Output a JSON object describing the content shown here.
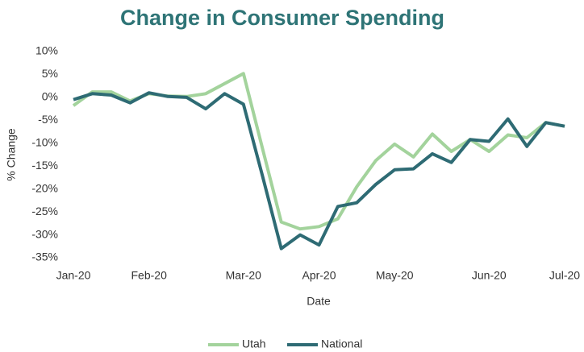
{
  "chart_data": {
    "type": "line",
    "title": "Change in Consumer Spending",
    "x_label": "Date",
    "y_label": "% Change",
    "categories": [
      "Jan-20",
      null,
      null,
      null,
      "Feb-20",
      null,
      null,
      null,
      null,
      "Mar-20",
      null,
      null,
      null,
      "Apr-20",
      null,
      null,
      null,
      "May-20",
      null,
      null,
      null,
      null,
      "Jun-20",
      null,
      null,
      null,
      "Jul-20"
    ],
    "series": [
      {
        "name": "Utah",
        "color": "#a3d39c",
        "values": [
          -1.8,
          1.2,
          1.2,
          -0.8,
          0.8,
          0.3,
          0.2,
          0.8,
          3,
          5.2,
          -11,
          -27.2,
          -28.7,
          -28.2,
          -26.5,
          -19.5,
          -13.8,
          -10.2,
          -13,
          -8,
          -11.8,
          -9.2,
          -11.8,
          -8.2,
          -8.8,
          -5.5,
          -6.3
        ]
      },
      {
        "name": "National",
        "color": "#2e6b74",
        "values": [
          -0.5,
          0.8,
          0.5,
          -1.2,
          1,
          0.2,
          0,
          -2.5,
          0.8,
          -1.5,
          -17,
          -33,
          -30,
          -32.2,
          -23.8,
          -23,
          -19,
          -15.8,
          -15.6,
          -12.3,
          -14.2,
          -9.2,
          -9.6,
          -4.7,
          -10.7,
          -5.5,
          -6.3
        ]
      }
    ],
    "ylim": [
      -35,
      10
    ],
    "yticks": [
      {
        "value": -35,
        "label": "-35%"
      },
      {
        "value": -30,
        "label": "-30%"
      },
      {
        "value": -25,
        "label": "-25%"
      },
      {
        "value": -20,
        "label": "-20%"
      },
      {
        "value": -15,
        "label": "-15%"
      },
      {
        "value": -10,
        "label": "-10%"
      },
      {
        "value": -5,
        "label": "-5%"
      },
      {
        "value": 0,
        "label": "0%"
      },
      {
        "value": 5,
        "label": "5%"
      },
      {
        "value": 10,
        "label": "10%"
      }
    ],
    "grid": false,
    "legend": "bottom"
  }
}
